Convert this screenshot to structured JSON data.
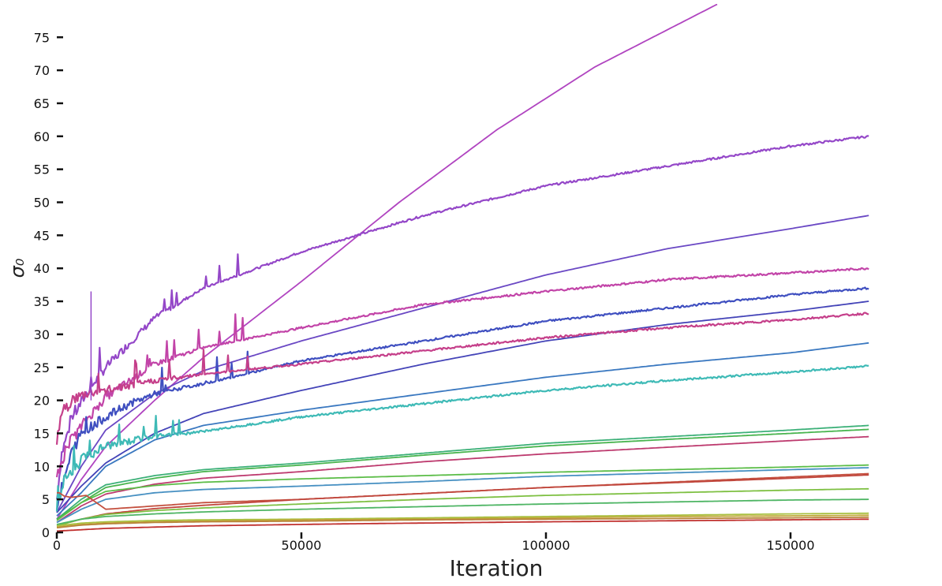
{
  "chart_data": {
    "type": "line",
    "title": "",
    "xlabel": "Iteration",
    "ylabel": "σ₀",
    "xlim": [
      0,
      166000
    ],
    "ylim": [
      0,
      80
    ],
    "xticks": [
      0,
      50000,
      100000,
      150000
    ],
    "yticks": [
      0,
      5,
      10,
      15,
      20,
      25,
      30,
      35,
      40,
      45,
      50,
      55,
      60,
      65,
      70,
      75
    ],
    "grid": false,
    "legend": "none",
    "series": [
      {
        "color": "#b044c0",
        "noisy": false,
        "points": [
          [
            0,
            2
          ],
          [
            5000,
            8
          ],
          [
            10000,
            13
          ],
          [
            20000,
            20
          ],
          [
            30000,
            26.5
          ],
          [
            50000,
            38
          ],
          [
            70000,
            50
          ],
          [
            90000,
            61
          ],
          [
            110000,
            70.5
          ],
          [
            135000,
            80
          ]
        ]
      },
      {
        "color": "#9447c8",
        "noisy": true,
        "points": [
          [
            0,
            5
          ],
          [
            1000,
            12
          ],
          [
            3000,
            17
          ],
          [
            6000,
            21
          ],
          [
            10000,
            25
          ],
          [
            20000,
            32.5
          ],
          [
            30000,
            37
          ],
          [
            50000,
            42.5
          ],
          [
            75000,
            48
          ],
          [
            100000,
            52.5
          ],
          [
            125000,
            55.5
          ],
          [
            150000,
            58.5
          ],
          [
            166000,
            60
          ]
        ]
      },
      {
        "color": "#6a48c4",
        "noisy": false,
        "points": [
          [
            0,
            3
          ],
          [
            5000,
            10
          ],
          [
            10000,
            15.5
          ],
          [
            20000,
            21
          ],
          [
            30000,
            24.5
          ],
          [
            50000,
            29
          ],
          [
            75000,
            34
          ],
          [
            100000,
            39
          ],
          [
            125000,
            43
          ],
          [
            150000,
            46
          ],
          [
            166000,
            48
          ]
        ]
      },
      {
        "color": "#c244a8",
        "noisy": true,
        "points": [
          [
            0,
            8
          ],
          [
            1000,
            11
          ],
          [
            3000,
            14
          ],
          [
            6000,
            17
          ],
          [
            10000,
            20.5
          ],
          [
            20000,
            25.5
          ],
          [
            30000,
            28
          ],
          [
            50000,
            31
          ],
          [
            75000,
            34.5
          ],
          [
            100000,
            36.5
          ],
          [
            125000,
            38.3
          ],
          [
            150000,
            39.3
          ],
          [
            166000,
            40
          ]
        ]
      },
      {
        "color": "#3f4fc0",
        "noisy": true,
        "points": [
          [
            0,
            4
          ],
          [
            3000,
            12
          ],
          [
            5000,
            15
          ],
          [
            10000,
            17.5
          ],
          [
            15000,
            19.5
          ],
          [
            20000,
            21
          ],
          [
            30000,
            22.5
          ],
          [
            50000,
            26
          ],
          [
            75000,
            29
          ],
          [
            100000,
            32
          ],
          [
            125000,
            34
          ],
          [
            150000,
            36
          ],
          [
            166000,
            37
          ]
        ]
      },
      {
        "color": "#4444b8",
        "noisy": false,
        "points": [
          [
            0,
            3
          ],
          [
            5000,
            7
          ],
          [
            10000,
            10.5
          ],
          [
            20000,
            15
          ],
          [
            30000,
            18
          ],
          [
            50000,
            21.5
          ],
          [
            75000,
            25.5
          ],
          [
            100000,
            29
          ],
          [
            125000,
            31.5
          ],
          [
            150000,
            33.5
          ],
          [
            166000,
            35
          ]
        ]
      },
      {
        "color": "#c53f8a",
        "noisy": true,
        "points": [
          [
            0,
            14
          ],
          [
            1000,
            18
          ],
          [
            3000,
            20
          ],
          [
            6000,
            21
          ],
          [
            10000,
            21.5
          ],
          [
            20000,
            23
          ],
          [
            30000,
            24
          ],
          [
            50000,
            25.5
          ],
          [
            75000,
            27.5
          ],
          [
            100000,
            29.5
          ],
          [
            125000,
            31
          ],
          [
            150000,
            32.2
          ],
          [
            166000,
            33.2
          ]
        ]
      },
      {
        "color": "#3a78c0",
        "noisy": false,
        "points": [
          [
            0,
            2.5
          ],
          [
            5000,
            6
          ],
          [
            10000,
            10
          ],
          [
            20000,
            14
          ],
          [
            30000,
            16.2
          ],
          [
            50000,
            18.5
          ],
          [
            75000,
            21
          ],
          [
            100000,
            23.5
          ],
          [
            125000,
            25.5
          ],
          [
            150000,
            27.2
          ],
          [
            166000,
            28.7
          ]
        ]
      },
      {
        "color": "#3ebab6",
        "noisy": true,
        "points": [
          [
            0,
            4
          ],
          [
            2000,
            8
          ],
          [
            5000,
            11
          ],
          [
            10000,
            13
          ],
          [
            20000,
            14.5
          ],
          [
            30000,
            15.3
          ],
          [
            50000,
            17.5
          ],
          [
            75000,
            19.5
          ],
          [
            100000,
            21.5
          ],
          [
            125000,
            23
          ],
          [
            150000,
            24.3
          ],
          [
            166000,
            25.2
          ]
        ]
      },
      {
        "color": "#3cb078",
        "noisy": false,
        "points": [
          [
            0,
            2
          ],
          [
            5000,
            5
          ],
          [
            10000,
            7.2
          ],
          [
            20000,
            8.6
          ],
          [
            30000,
            9.5
          ],
          [
            50000,
            10.5
          ],
          [
            75000,
            12
          ],
          [
            100000,
            13.5
          ],
          [
            125000,
            14.5
          ],
          [
            150000,
            15.5
          ],
          [
            166000,
            16.2
          ]
        ]
      },
      {
        "color": "#48b44e",
        "noisy": false,
        "points": [
          [
            0,
            2
          ],
          [
            5000,
            4.5
          ],
          [
            10000,
            6.8
          ],
          [
            20000,
            8.2
          ],
          [
            30000,
            9.2
          ],
          [
            50000,
            10.2
          ],
          [
            75000,
            11.7
          ],
          [
            100000,
            13.1
          ],
          [
            125000,
            14.1
          ],
          [
            150000,
            15
          ],
          [
            166000,
            15.6
          ]
        ]
      },
      {
        "color": "#bd3a6e",
        "noisy": false,
        "points": [
          [
            0,
            1.5
          ],
          [
            5000,
            4
          ],
          [
            10000,
            5.8
          ],
          [
            20000,
            7.3
          ],
          [
            30000,
            8.2
          ],
          [
            50000,
            9.2
          ],
          [
            75000,
            10.7
          ],
          [
            100000,
            11.9
          ],
          [
            125000,
            12.9
          ],
          [
            150000,
            13.9
          ],
          [
            166000,
            14.5
          ]
        ]
      },
      {
        "color": "#5cbd48",
        "noisy": false,
        "points": [
          [
            0,
            1.8
          ],
          [
            5000,
            4.5
          ],
          [
            10000,
            6.2
          ],
          [
            20000,
            7.1
          ],
          [
            30000,
            7.6
          ],
          [
            50000,
            8.1
          ],
          [
            75000,
            8.6
          ],
          [
            100000,
            9.1
          ],
          [
            125000,
            9.5
          ],
          [
            150000,
            9.9
          ],
          [
            166000,
            10.2
          ]
        ]
      },
      {
        "color": "#4790c2",
        "noisy": false,
        "points": [
          [
            0,
            1.5
          ],
          [
            5000,
            3.5
          ],
          [
            10000,
            5
          ],
          [
            20000,
            6
          ],
          [
            30000,
            6.5
          ],
          [
            50000,
            7
          ],
          [
            75000,
            7.7
          ],
          [
            100000,
            8.5
          ],
          [
            125000,
            9
          ],
          [
            150000,
            9.5
          ],
          [
            166000,
            9.8
          ]
        ]
      },
      {
        "color": "#c4503f",
        "noisy": false,
        "points": [
          [
            0,
            6
          ],
          [
            500,
            6
          ],
          [
            1500,
            5.5
          ],
          [
            3000,
            5.3
          ],
          [
            6000,
            5.6
          ],
          [
            10000,
            3.5
          ],
          [
            20000,
            4
          ],
          [
            30000,
            4.5
          ],
          [
            50000,
            5
          ],
          [
            75000,
            5.9
          ],
          [
            100000,
            6.8
          ],
          [
            125000,
            7.6
          ],
          [
            150000,
            8.4
          ],
          [
            166000,
            8.9
          ]
        ]
      },
      {
        "color": "#c0463c",
        "noisy": false,
        "points": [
          [
            0,
            1
          ],
          [
            5000,
            2
          ],
          [
            10000,
            2.8
          ],
          [
            20000,
            3.6
          ],
          [
            30000,
            4.1
          ],
          [
            50000,
            5
          ],
          [
            75000,
            5.9
          ],
          [
            100000,
            6.8
          ],
          [
            125000,
            7.5
          ],
          [
            150000,
            8.2
          ],
          [
            166000,
            8.7
          ]
        ]
      },
      {
        "color": "#7ec042",
        "noisy": false,
        "points": [
          [
            0,
            1
          ],
          [
            5000,
            2
          ],
          [
            10000,
            2.7
          ],
          [
            20000,
            3.3
          ],
          [
            30000,
            3.7
          ],
          [
            50000,
            4.3
          ],
          [
            75000,
            5
          ],
          [
            100000,
            5.6
          ],
          [
            125000,
            6
          ],
          [
            150000,
            6.4
          ],
          [
            166000,
            6.6
          ]
        ]
      },
      {
        "color": "#4eb564",
        "noisy": false,
        "points": [
          [
            0,
            1.2
          ],
          [
            5000,
            2
          ],
          [
            10000,
            2.4
          ],
          [
            20000,
            2.8
          ],
          [
            30000,
            3.1
          ],
          [
            50000,
            3.5
          ],
          [
            75000,
            3.9
          ],
          [
            100000,
            4.3
          ],
          [
            125000,
            4.6
          ],
          [
            150000,
            4.9
          ],
          [
            166000,
            5
          ]
        ]
      },
      {
        "color": "#a8c040",
        "noisy": false,
        "points": [
          [
            0,
            1
          ],
          [
            5000,
            1.4
          ],
          [
            10000,
            1.6
          ],
          [
            20000,
            1.8
          ],
          [
            30000,
            1.9
          ],
          [
            50000,
            2
          ],
          [
            75000,
            2.2
          ],
          [
            100000,
            2.4
          ],
          [
            125000,
            2.6
          ],
          [
            150000,
            2.8
          ],
          [
            166000,
            2.9
          ]
        ]
      },
      {
        "color": "#c0a83a",
        "noisy": false,
        "points": [
          [
            0,
            0.8
          ],
          [
            5000,
            1.2
          ],
          [
            10000,
            1.4
          ],
          [
            20000,
            1.6
          ],
          [
            30000,
            1.7
          ],
          [
            50000,
            1.9
          ],
          [
            75000,
            2
          ],
          [
            100000,
            2.2
          ],
          [
            125000,
            2.4
          ],
          [
            150000,
            2.5
          ],
          [
            166000,
            2.6
          ]
        ]
      },
      {
        "color": "#b8843a",
        "noisy": false,
        "points": [
          [
            0,
            0.7
          ],
          [
            5000,
            1.1
          ],
          [
            10000,
            1.3
          ],
          [
            20000,
            1.5
          ],
          [
            30000,
            1.6
          ],
          [
            50000,
            1.7
          ],
          [
            75000,
            1.9
          ],
          [
            100000,
            2
          ],
          [
            125000,
            2.1
          ],
          [
            150000,
            2.2
          ],
          [
            166000,
            2.3
          ]
        ]
      },
      {
        "color": "#c0302e",
        "noisy": false,
        "points": [
          [
            0,
            0.2
          ],
          [
            5000,
            0.4
          ],
          [
            10000,
            0.6
          ],
          [
            30000,
            1
          ],
          [
            60000,
            1.3
          ],
          [
            100000,
            1.6
          ],
          [
            166000,
            2
          ]
        ]
      }
    ]
  }
}
